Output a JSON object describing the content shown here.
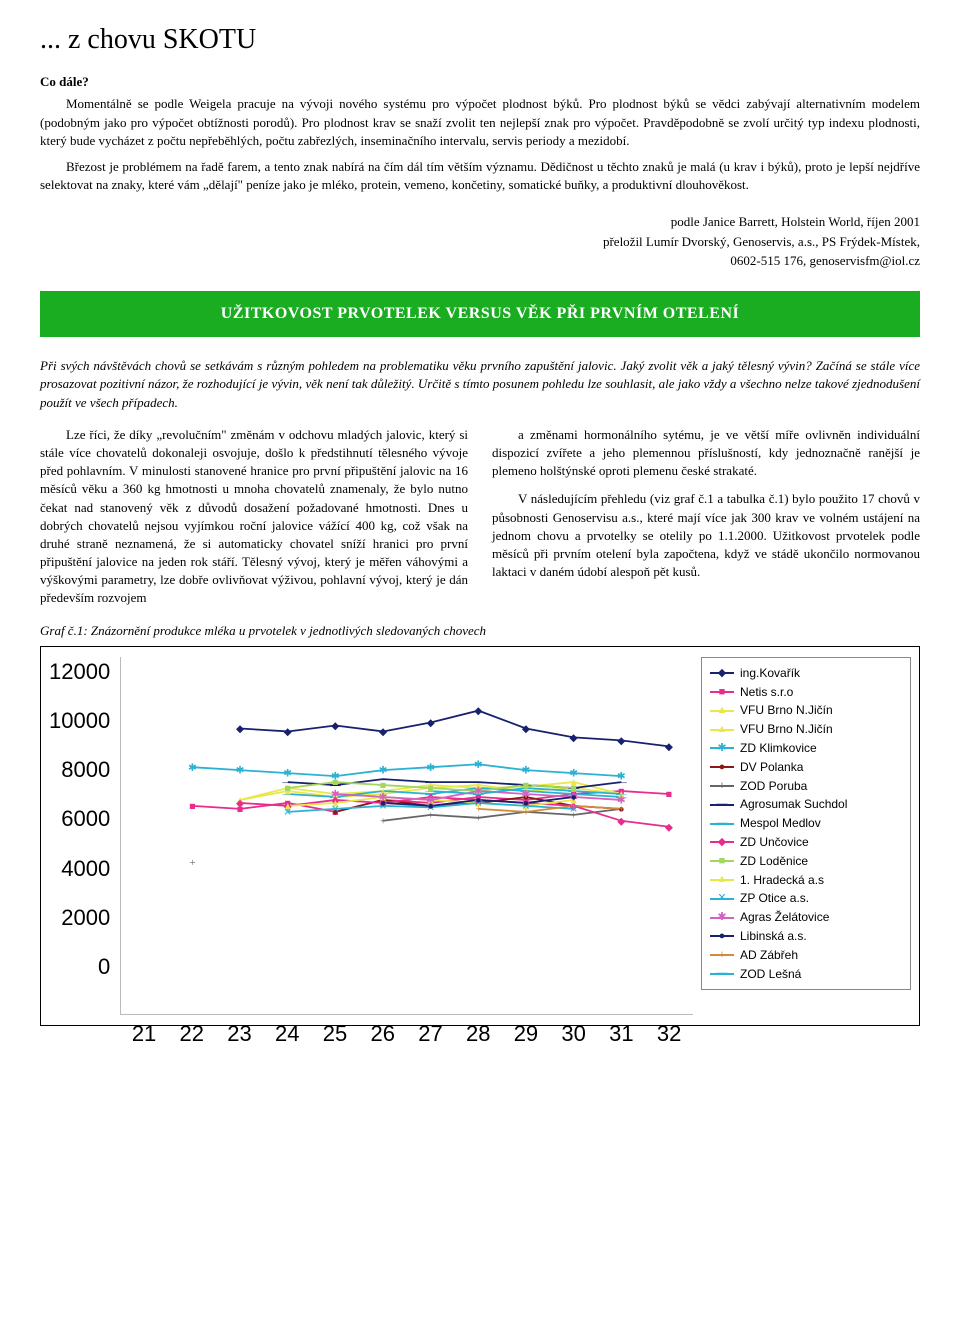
{
  "header": {
    "title": "... z chovu SKOTU",
    "kicker": "Co dále?"
  },
  "body": {
    "p1": "Momentálně se podle Weigela pracuje na vývoji nového systému pro výpočet plodnost býků. Pro plodnost býků se vědci zabývají alternativním modelem (podobným jako pro výpočet obtížnosti porodů). Pro plodnost krav se snaží zvolit ten nejlepší znak pro výpočet. Pravděpodobně se zvolí určitý typ indexu plodnosti, který bude vycházet z počtu nepřeběhlých, počtu zabřezlých, inseminačního intervalu, servis periody a mezidobí.",
    "p2": "Březost je problémem na řadě farem, a tento znak nabírá na čím dál tím větším významu. Dědičnost u těchto znaků je malá (u krav i býků), proto je lepší nejdříve selektovat na znaky, které vám „dělají\" peníze jako je mléko, protein, vemeno, končetiny, somatické buňky, a produktivní dlouhověkost."
  },
  "credits": {
    "line1": "podle Janice Barrett, Holstein World, říjen 2001",
    "line2": "přeložil Lumír Dvorský, Genoservis, a.s., PS Frýdek-Místek,",
    "line3": "0602-515 176, genoservisfm@iol.cz"
  },
  "section_title": "UŽITKOVOST PRVOTELEK VERSUS VĚK PŘI PRVNÍM OTELENÍ",
  "intro": "Při svých návštěvách chovů se setkávám s různým pohledem na problematiku věku prvního zapuštění jalovic. Jaký zvolit věk a jaký tělesný vývin? Začíná se stále více prosazovat pozitivní názor, že rozhodující je vývin, věk není tak důležitý. Určitě s tímto posunem pohledu lze souhlasit, ale jako vždy a všechno nelze takové zjednodušení použít ve všech případech.",
  "col_left": {
    "p1": "Lze říci, že díky „revolučním\" změnám v odchovu mladých jalovic, který si stále více chovatelů dokonaleji osvojuje, došlo k předstihnutí tělesného vývoje před pohlavním. V minulosti stanovené hranice pro první připuštění jalovic na 16 měsíců věku a 360 kg hmotnosti u mnoha chovatelů znamenaly, že bylo nutno čekat nad stanovený věk z důvodů dosažení požadované hmotnosti. Dnes u dobrých chovatelů nejsou vyjímkou roční jalovice vážící 400 kg, což však na druhé straně neznamená, že si automaticky chovatel sníží hranici pro první připuštění jalovice na jeden rok stáří. Tělesný vývoj, který je měřen váhovými a výškovými parametry, lze dobře ovlivňovat výživou, pohlavní vývoj, který je dán především rozvojem"
  },
  "col_right": {
    "p1": "a změnami hormonálního sytému, je ve větší míře ovlivněn individuální dispozicí zvířete a jeho plemennou příslušností, kdy jednoznačně ranější je plemeno holštýnské oproti plemenu české strakaté.",
    "p2": "V následujícím přehledu (viz graf č.1 a tabulka č.1) bylo použito 17 chovů v působnosti Genoservisu a.s., které mají více jak 300 krav ve volném ustájení na jednom chovu a prvotelky se otelily po 1.1.2000. Užitkovost prvotelek podle měsíců při prvním otelení byla započtena, když ve stádě ukončilo normovanou laktaci v daném údobí alespoň pět kusů."
  },
  "chart": {
    "caption": "Graf č.1: Znázornění produkce mléka u prvotelek v jednotlivých sledovaných chovech",
    "type": "line",
    "ylim": [
      0,
      12000
    ],
    "yticks": [
      "12000",
      "10000",
      "8000",
      "6000",
      "4000",
      "2000",
      "0"
    ],
    "xticks": [
      "21",
      "22",
      "23",
      "24",
      "25",
      "26",
      "27",
      "28",
      "29",
      "30",
      "31",
      "32"
    ],
    "background_color": "#ffffff",
    "series": [
      {
        "label": "ing.Kovařík",
        "color": "#18216e",
        "marker": "◆",
        "values": [
          null,
          null,
          9600,
          9500,
          9700,
          9500,
          9800,
          10200,
          9600,
          9300,
          9200,
          9000
        ]
      },
      {
        "label": "Netis s.r.o",
        "color": "#e82c8e",
        "marker": "■",
        "values": [
          null,
          7000,
          6900,
          7100,
          6800,
          7200,
          7100,
          7300,
          7200,
          7400,
          7500,
          7400
        ]
      },
      {
        "label": "VFU Brno N.Jičín",
        "color": "#e8e84a",
        "marker": "▲",
        "values": [
          null,
          null,
          7200,
          7600,
          7400,
          7500,
          7700,
          7600,
          7650,
          7800,
          7400,
          null
        ]
      },
      {
        "label": "VFU Brno N.Jičín",
        "color": "#e8e84a",
        "marker": "▲",
        "values": [
          null,
          null,
          7200,
          7500,
          7300,
          7400,
          7600,
          7700,
          7500,
          7600,
          7400,
          null
        ]
      },
      {
        "label": "ZD Klimkovice",
        "color": "#2bb1d4",
        "marker": "✱",
        "values": [
          null,
          8300,
          8200,
          8100,
          8000,
          8200,
          8300,
          8400,
          8200,
          8100,
          8000,
          null
        ]
      },
      {
        "label": "DV Polanka",
        "color": "#8c1717",
        "marker": "●",
        "values": [
          null,
          null,
          null,
          null,
          6800,
          7200,
          7000,
          7100,
          7300,
          7000,
          6900,
          null
        ]
      },
      {
        "label": "ZOD Poruba",
        "color": "#666",
        "marker": "+",
        "values": [
          null,
          5100,
          null,
          null,
          null,
          6500,
          6700,
          6600,
          6800,
          6700,
          6900,
          null
        ]
      },
      {
        "label": "Agrosumak Suchdol",
        "color": "#18216e",
        "marker": "—",
        "values": [
          null,
          null,
          null,
          7800,
          7700,
          7900,
          7800,
          7800,
          7700,
          7600,
          7800,
          null
        ]
      },
      {
        "label": "Mespol Medlov",
        "color": "#2bb1d4",
        "marker": "—",
        "values": [
          null,
          null,
          null,
          7400,
          7300,
          7500,
          7400,
          7600,
          7500,
          7400,
          7300,
          null
        ]
      },
      {
        "label": "ZD Unčovice",
        "color": "#e82c8e",
        "marker": "◆",
        "values": [
          null,
          null,
          7100,
          7000,
          7200,
          7100,
          7300,
          7200,
          7100,
          7000,
          6500,
          6300
        ]
      },
      {
        "label": "ZD Loděnice",
        "color": "#a4d65e",
        "marker": "■",
        "values": [
          null,
          null,
          null,
          7600,
          7800,
          7700,
          7600,
          7500,
          7700,
          7600,
          null,
          null
        ]
      },
      {
        "label": "1. Hradecká a.s",
        "color": "#e8e84a",
        "marker": "▲",
        "values": [
          null,
          null,
          null,
          7000,
          7100,
          7300,
          7200,
          7100,
          7000,
          7200,
          null,
          null
        ]
      },
      {
        "label": "ZP Otice a.s.",
        "color": "#2bb1d4",
        "marker": "✕",
        "values": [
          null,
          null,
          null,
          6800,
          6900,
          7000,
          6950,
          7100,
          7000,
          6900,
          null,
          null
        ]
      },
      {
        "label": "Agras Želátovice",
        "color": "#d462c0",
        "marker": "✱",
        "values": [
          null,
          null,
          null,
          null,
          7400,
          7300,
          7200,
          7500,
          7400,
          7300,
          7200,
          null
        ]
      },
      {
        "label": "Libinská a.s.",
        "color": "#18216e",
        "marker": "●",
        "values": [
          null,
          null,
          null,
          null,
          null,
          7100,
          7000,
          7200,
          7100,
          7300,
          null,
          null
        ]
      },
      {
        "label": "AD Zábřeh",
        "color": "#d48a3a",
        "marker": "+",
        "values": [
          null,
          null,
          null,
          null,
          null,
          null,
          null,
          6900,
          6800,
          7000,
          6900,
          null
        ]
      },
      {
        "label": "ZOD Lešná",
        "color": "#2bb1d4",
        "marker": "—",
        "values": [
          null,
          null,
          null,
          null,
          null,
          null,
          7500,
          7400,
          7600,
          7500,
          7400,
          null
        ]
      }
    ]
  }
}
